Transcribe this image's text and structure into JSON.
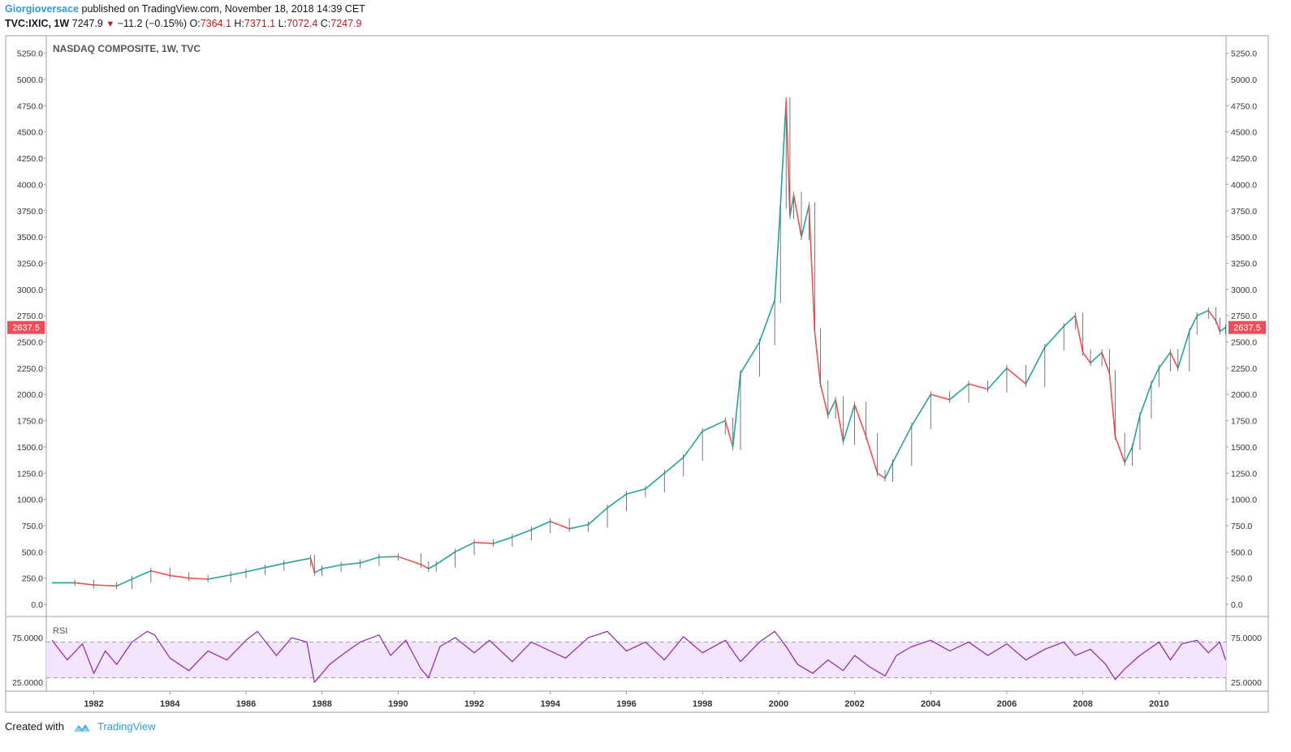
{
  "header": {
    "author": "Giorgioversace",
    "published": "published on TradingView.com, November 18, 2018 14:39 CET",
    "symbol": "TVC:IXIC, 1W",
    "last": "7247.9",
    "change": "−11.2 (−0.15%)",
    "open_label": "O:",
    "open": "7364.1",
    "high_label": "H:",
    "high": "7371.1",
    "low_label": "L:",
    "low": "7072.4",
    "close_label": "C:",
    "close": "7247.9"
  },
  "footer": {
    "created_with": "Created with",
    "brand": "TradingView"
  },
  "chart_data": [
    {
      "type": "candlestick",
      "title": "NASDAQ COMPOSITE, 1W, TVC",
      "ylim": [
        0,
        5250
      ],
      "y_ticks": [
        "5250.0",
        "5000.0",
        "4750.0",
        "4500.0",
        "4250.0",
        "4000.0",
        "3750.0",
        "3500.0",
        "3250.0",
        "3000.0",
        "2750.0",
        "2500.0",
        "2250.0",
        "2000.0",
        "1750.0",
        "1500.0",
        "1250.0",
        "1000.0",
        "750.0",
        "500.0",
        "250.0",
        "0.0"
      ],
      "price_label": "2637.5",
      "x_ticks": [
        "1982",
        "1984",
        "1986",
        "1988",
        "1990",
        "1992",
        "1994",
        "1996",
        "1998",
        "2000",
        "2002",
        "2004",
        "2006",
        "2008",
        "2010"
      ],
      "x": [
        1980.9,
        1981.5,
        1982.0,
        1982.6,
        1983.0,
        1983.5,
        1984.0,
        1984.5,
        1985.0,
        1985.6,
        1986.0,
        1986.5,
        1987.0,
        1987.7,
        1987.8,
        1988.0,
        1988.5,
        1989.0,
        1989.5,
        1990.0,
        1990.6,
        1990.8,
        1991.0,
        1991.5,
        1992.0,
        1992.5,
        1993.0,
        1993.5,
        1994.0,
        1994.5,
        1995.0,
        1995.5,
        1996.0,
        1996.5,
        1997.0,
        1997.5,
        1998.0,
        1998.6,
        1998.8,
        1999.0,
        1999.5,
        1999.9,
        2000.05,
        2000.2,
        2000.3,
        2000.4,
        2000.6,
        2000.8,
        2000.95,
        2001.1,
        2001.3,
        2001.5,
        2001.7,
        2002.0,
        2002.3,
        2002.6,
        2002.8,
        2003.0,
        2003.5,
        2004.0,
        2004.5,
        2005.0,
        2005.5,
        2006.0,
        2006.5,
        2007.0,
        2007.5,
        2007.8,
        2008.0,
        2008.2,
        2008.5,
        2008.7,
        2008.85,
        2009.1,
        2009.3,
        2009.5,
        2009.8,
        2010.0,
        2010.3,
        2010.5,
        2010.8,
        2011.0,
        2011.3,
        2011.5,
        2011.6,
        2011.75
      ],
      "close": [
        205,
        205,
        185,
        175,
        240,
        320,
        275,
        250,
        240,
        280,
        310,
        350,
        390,
        440,
        300,
        340,
        375,
        395,
        450,
        455,
        380,
        340,
        380,
        500,
        590,
        580,
        640,
        710,
        790,
        720,
        760,
        920,
        1050,
        1100,
        1250,
        1400,
        1650,
        1750,
        1500,
        2200,
        2500,
        2900,
        3800,
        4800,
        3700,
        3900,
        3500,
        3800,
        2600,
        2100,
        1800,
        1950,
        1550,
        1900,
        1600,
        1250,
        1200,
        1350,
        1700,
        2000,
        1950,
        2100,
        2050,
        2250,
        2100,
        2450,
        2650,
        2750,
        2400,
        2300,
        2400,
        2200,
        1600,
        1350,
        1500,
        1800,
        2100,
        2250,
        2400,
        2250,
        2600,
        2750,
        2800,
        2700,
        2600,
        2637.5
      ]
    },
    {
      "type": "line",
      "title": "RSI",
      "y_ticks": [
        "75.0000",
        "25.0000"
      ],
      "upper_band": 70,
      "lower_band": 30,
      "x": [
        1980.9,
        1981.3,
        1981.7,
        1982.0,
        1982.3,
        1982.6,
        1983.0,
        1983.4,
        1983.6,
        1984.0,
        1984.5,
        1985.0,
        1985.5,
        1986.0,
        1986.3,
        1986.8,
        1987.2,
        1987.6,
        1987.8,
        1988.2,
        1988.6,
        1989.0,
        1989.5,
        1989.8,
        1990.2,
        1990.6,
        1990.8,
        1991.1,
        1991.5,
        1992.0,
        1992.4,
        1993.0,
        1993.5,
        1994.0,
        1994.4,
        1995.0,
        1995.5,
        1996.0,
        1996.5,
        1997.0,
        1997.5,
        1998.0,
        1998.6,
        1999.0,
        1999.5,
        1999.9,
        2000.2,
        2000.5,
        2000.9,
        2001.3,
        2001.7,
        2002.0,
        2002.4,
        2002.8,
        2003.1,
        2003.5,
        2004.0,
        2004.5,
        2005.0,
        2005.5,
        2006.0,
        2006.5,
        2007.0,
        2007.5,
        2007.8,
        2008.2,
        2008.6,
        2008.85,
        2009.1,
        2009.5,
        2010.0,
        2010.3,
        2010.6,
        2011.0,
        2011.3,
        2011.6,
        2011.75
      ],
      "values": [
        72,
        50,
        68,
        35,
        60,
        45,
        70,
        82,
        78,
        52,
        38,
        60,
        50,
        72,
        82,
        55,
        75,
        70,
        25,
        45,
        58,
        70,
        78,
        55,
        72,
        40,
        30,
        65,
        75,
        58,
        72,
        48,
        70,
        60,
        52,
        75,
        82,
        60,
        70,
        50,
        76,
        58,
        72,
        48,
        70,
        82,
        65,
        45,
        35,
        50,
        38,
        55,
        42,
        32,
        55,
        65,
        72,
        60,
        70,
        55,
        68,
        50,
        62,
        70,
        55,
        62,
        45,
        28,
        40,
        55,
        70,
        50,
        68,
        72,
        58,
        70,
        50
      ]
    }
  ]
}
